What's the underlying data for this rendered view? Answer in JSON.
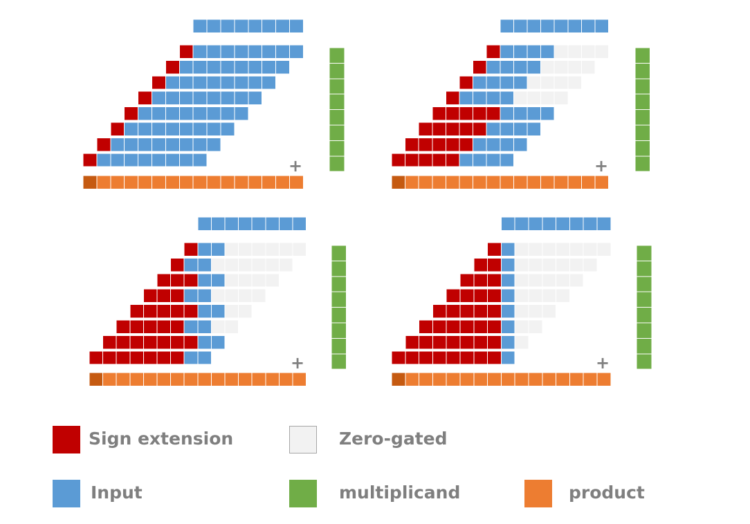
{
  "colors": {
    "sign_extension": "#c00000",
    "input": "#5b9bd5",
    "zero_gated": "#f2f2f2",
    "zero_gated_border": "#bfbfbf",
    "multiplicand": "#70ad47",
    "product": "#ed7d31",
    "product_msb": "#c55a11",
    "plus": "#808080"
  },
  "legend": {
    "sign_extension": "Sign extension",
    "zero_gated": "Zero-gated",
    "input": "Input",
    "multiplicand": "multiplicand",
    "product": "product"
  },
  "plus_symbol": "+",
  "panels": [
    {
      "input_bits": 8,
      "multiplicand_bits": 8,
      "product_bits": 16,
      "rows": [
        {
          "sign": 1,
          "input": 8,
          "zero": 0
        },
        {
          "sign": 1,
          "input": 8,
          "zero": 0
        },
        {
          "sign": 1,
          "input": 8,
          "zero": 0
        },
        {
          "sign": 1,
          "input": 8,
          "zero": 0
        },
        {
          "sign": 1,
          "input": 8,
          "zero": 0
        },
        {
          "sign": 1,
          "input": 8,
          "zero": 0
        },
        {
          "sign": 1,
          "input": 8,
          "zero": 0
        },
        {
          "sign": 1,
          "input": 8,
          "zero": 0
        }
      ]
    },
    {
      "input_bits": 8,
      "multiplicand_bits": 8,
      "product_bits": 16,
      "rows": [
        {
          "sign": 1,
          "input": 4,
          "zero": 4
        },
        {
          "sign": 1,
          "input": 4,
          "zero": 4
        },
        {
          "sign": 1,
          "input": 4,
          "zero": 4
        },
        {
          "sign": 1,
          "input": 4,
          "zero": 4
        },
        {
          "sign": 5,
          "input": 4,
          "zero": 0
        },
        {
          "sign": 5,
          "input": 4,
          "zero": 0
        },
        {
          "sign": 5,
          "input": 4,
          "zero": 0
        },
        {
          "sign": 5,
          "input": 4,
          "zero": 0
        }
      ]
    },
    {
      "input_bits": 8,
      "multiplicand_bits": 8,
      "product_bits": 16,
      "rows": [
        {
          "sign": 1,
          "input": 2,
          "zero": 6
        },
        {
          "sign": 1,
          "input": 2,
          "zero": 6
        },
        {
          "sign": 3,
          "input": 2,
          "zero": 4
        },
        {
          "sign": 3,
          "input": 2,
          "zero": 4
        },
        {
          "sign": 5,
          "input": 2,
          "zero": 2
        },
        {
          "sign": 5,
          "input": 2,
          "zero": 2
        },
        {
          "sign": 7,
          "input": 2,
          "zero": 0
        },
        {
          "sign": 7,
          "input": 2,
          "zero": 0
        }
      ]
    },
    {
      "input_bits": 8,
      "multiplicand_bits": 8,
      "product_bits": 16,
      "rows": [
        {
          "sign": 1,
          "input": 1,
          "zero": 7
        },
        {
          "sign": 2,
          "input": 1,
          "zero": 6
        },
        {
          "sign": 3,
          "input": 1,
          "zero": 5
        },
        {
          "sign": 4,
          "input": 1,
          "zero": 4
        },
        {
          "sign": 5,
          "input": 1,
          "zero": 3
        },
        {
          "sign": 6,
          "input": 1,
          "zero": 2
        },
        {
          "sign": 7,
          "input": 1,
          "zero": 1
        },
        {
          "sign": 8,
          "input": 1,
          "zero": 0
        }
      ]
    }
  ]
}
